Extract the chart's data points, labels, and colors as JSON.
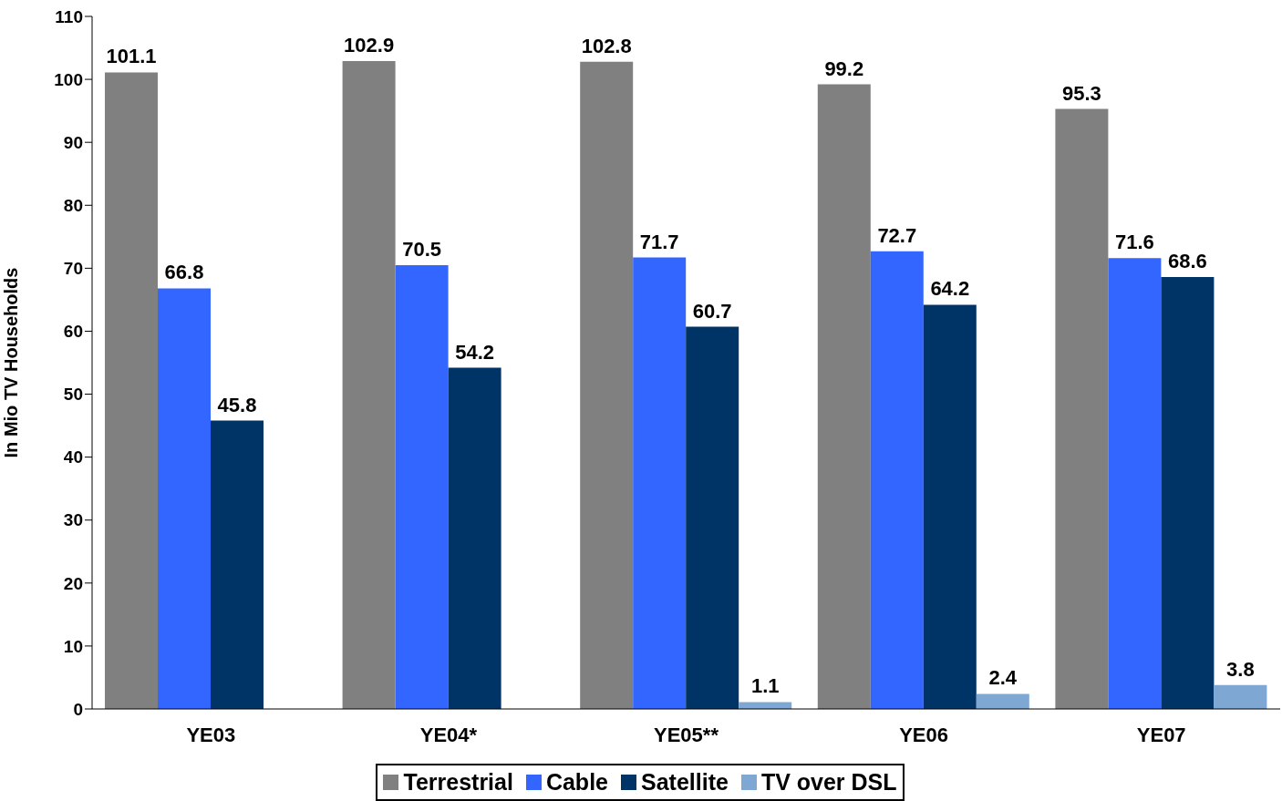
{
  "chart_data": {
    "type": "bar",
    "ylabel": "In Mio TV Households",
    "categories": [
      "YE03",
      "YE04*",
      "YE05**",
      "YE06",
      "YE07"
    ],
    "series": [
      {
        "name": "Terrestrial",
        "color": "#808080",
        "values": [
          101.1,
          102.9,
          102.8,
          99.2,
          95.3
        ]
      },
      {
        "name": "Cable",
        "color": "#3366ff",
        "values": [
          66.8,
          70.5,
          71.7,
          72.7,
          71.6
        ]
      },
      {
        "name": "Satellite",
        "color": "#003366",
        "values": [
          45.8,
          54.2,
          60.7,
          64.2,
          68.6
        ]
      },
      {
        "name": "TV over DSL",
        "color": "#7fa7d3",
        "values": [
          null,
          null,
          1.1,
          2.4,
          3.8
        ]
      }
    ],
    "ylim": [
      0,
      110
    ],
    "yticks": [
      0,
      10,
      20,
      30,
      40,
      50,
      60,
      70,
      80,
      90,
      100,
      110
    ],
    "grid": false,
    "legend": "bottom",
    "data_labels": true
  }
}
